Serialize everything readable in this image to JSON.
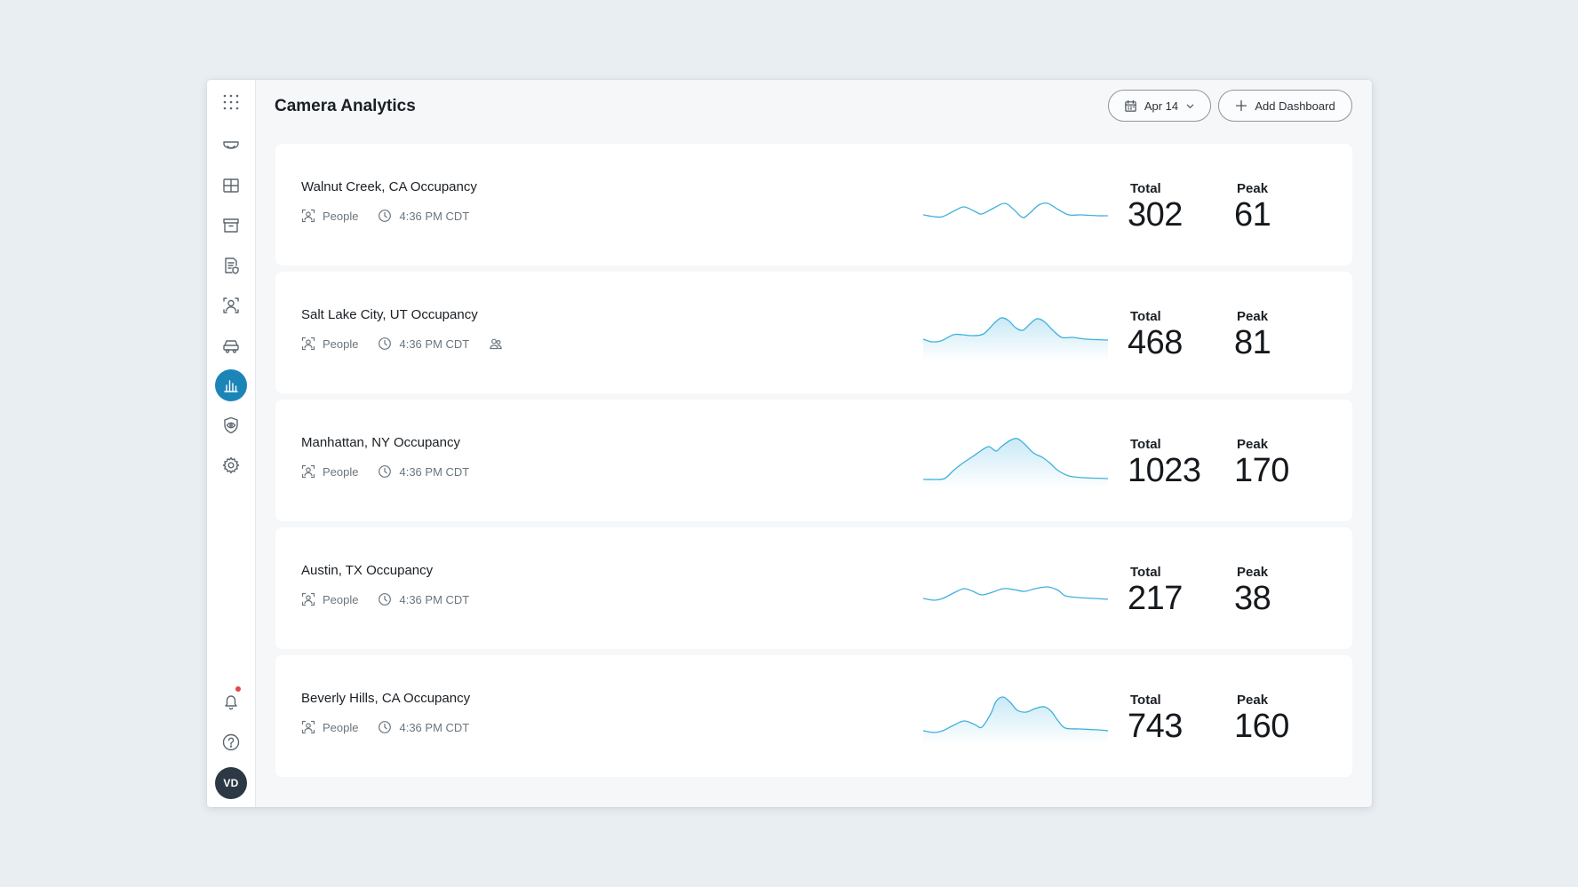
{
  "header": {
    "title": "Camera Analytics",
    "date_label": "Apr 14",
    "add_dashboard_label": "Add Dashboard"
  },
  "sidebar": {
    "items": [
      {
        "name": "cameras",
        "icon": "dome-camera-icon"
      },
      {
        "name": "grid",
        "icon": "grid-view-icon"
      },
      {
        "name": "archive",
        "icon": "archive-icon"
      },
      {
        "name": "reports",
        "icon": "report-icon"
      },
      {
        "name": "people",
        "icon": "person-detect-icon"
      },
      {
        "name": "vehicles",
        "icon": "vehicle-icon"
      },
      {
        "name": "analytics",
        "icon": "bar-chart-icon",
        "active": true
      },
      {
        "name": "security",
        "icon": "shield-eye-icon"
      },
      {
        "name": "settings",
        "icon": "gear-icon"
      }
    ],
    "avatar_initials": "VD"
  },
  "stat_labels": {
    "total": "Total",
    "peak": "Peak"
  },
  "cards": [
    {
      "title": "Walnut Creek, CA Occupancy",
      "type": "People",
      "time": "4:36 PM CDT",
      "total": "302",
      "peak": "61",
      "shared": false
    },
    {
      "title": "Salt Lake City, UT Occupancy",
      "type": "People",
      "time": "4:36 PM CDT",
      "total": "468",
      "peak": "81",
      "shared": true
    },
    {
      "title": "Manhattan, NY Occupancy",
      "type": "People",
      "time": "4:36 PM CDT",
      "total": "1023",
      "peak": "170",
      "shared": false
    },
    {
      "title": "Austin, TX Occupancy",
      "type": "People",
      "time": "4:36 PM CDT",
      "total": "217",
      "peak": "38",
      "shared": false
    },
    {
      "title": "Beverly Hills, CA Occupancy",
      "type": "People",
      "time": "4:36 PM CDT",
      "total": "743",
      "peak": "160",
      "shared": false
    }
  ],
  "colors": {
    "accent": "#1b85b8",
    "spark_line": "#3fb0dc",
    "avatar_bg": "#2c3944",
    "notification": "#e04848"
  }
}
